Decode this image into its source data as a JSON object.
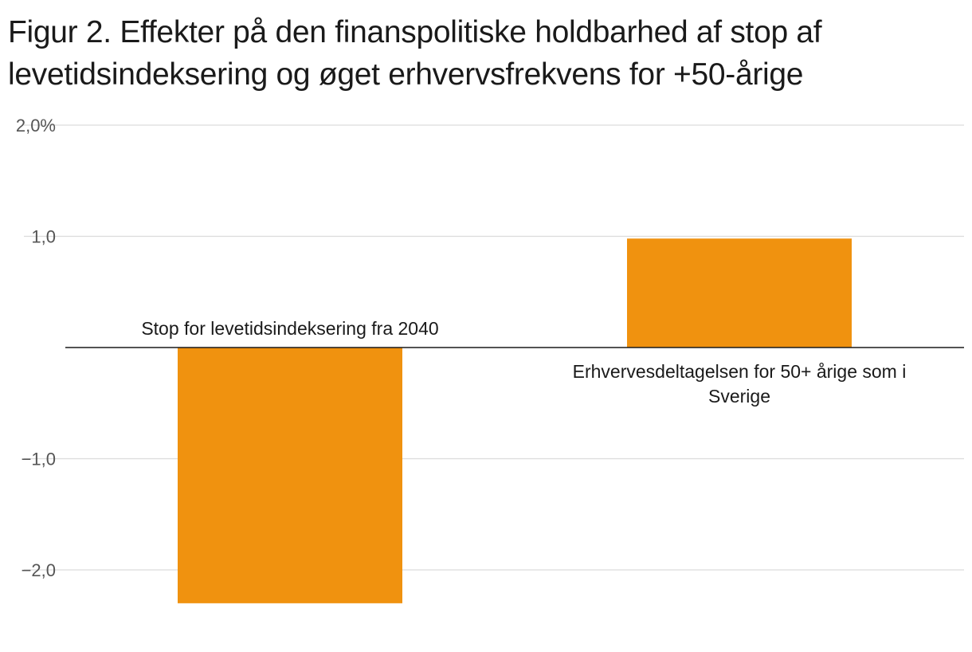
{
  "title": "Figur 2. Effekter på den finanspolitiske holdbarhed af stop af levetidsindeksering og øget erhvervsfrekvens for +50-årige",
  "chart_data": {
    "type": "bar",
    "categories": [
      "Stop for levetidsindeksering fra 2040",
      "Erhvervesdeltagelsen for 50+ årige som i Sverige"
    ],
    "category_label_lines": [
      [
        "Stop for levetidsindeksering fra 2040"
      ],
      [
        "Erhvervesdeltagelsen for 50+ årige som i",
        "Sverige"
      ]
    ],
    "values": [
      -2.3,
      0.98
    ],
    "ylim": [
      -2.5,
      2.0
    ],
    "yticks": [
      2.0,
      1.0,
      -1.0,
      -2.0
    ],
    "ytick_labels": [
      "2,0%",
      "1,0",
      "−1,0",
      "−2,0"
    ],
    "grid": true,
    "bar_color": "#F0920F",
    "xlabel": "",
    "ylabel": ""
  }
}
